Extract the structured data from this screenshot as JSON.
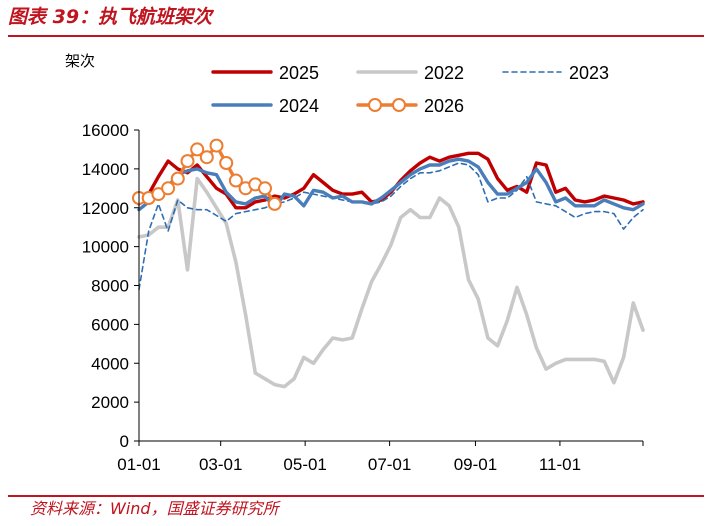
{
  "figure": {
    "title": "图表 39：执飞航班架次",
    "source": "资料来源：Wind，国盛证券研究所"
  },
  "chart_data": {
    "type": "line",
    "y_unit_label": "架次",
    "ylim": [
      0,
      16000
    ],
    "y_ticks": [
      0,
      2000,
      4000,
      6000,
      8000,
      10000,
      12000,
      14000,
      16000
    ],
    "x_domain": [
      "01-01",
      "12-31"
    ],
    "x_ticks": [
      "01-01",
      "03-01",
      "05-01",
      "07-01",
      "09-01",
      "11-01"
    ],
    "grid": false,
    "legend_position": "top",
    "series": [
      {
        "name": "2025",
        "color": "#c00000",
        "style": "solid",
        "points": [
          [
            "01-01",
            12200
          ],
          [
            "01-08",
            12700
          ],
          [
            "01-15",
            13600
          ],
          [
            "01-22",
            14400
          ],
          [
            "01-29",
            14000
          ],
          [
            "02-05",
            13800
          ],
          [
            "02-12",
            14200
          ],
          [
            "02-19",
            13600
          ],
          [
            "02-26",
            13000
          ],
          [
            "03-05",
            12700
          ],
          [
            "03-12",
            12000
          ],
          [
            "03-19",
            12000
          ],
          [
            "03-26",
            12300
          ],
          [
            "04-02",
            12400
          ],
          [
            "04-09",
            12600
          ],
          [
            "04-16",
            12500
          ],
          [
            "04-23",
            12700
          ],
          [
            "04-30",
            13000
          ],
          [
            "05-07",
            13700
          ],
          [
            "05-14",
            13300
          ],
          [
            "05-21",
            12900
          ],
          [
            "05-28",
            12700
          ],
          [
            "06-04",
            12700
          ],
          [
            "06-11",
            12800
          ],
          [
            "06-18",
            12300
          ],
          [
            "06-25",
            12400
          ],
          [
            "07-02",
            12800
          ],
          [
            "07-09",
            13400
          ],
          [
            "07-16",
            13900
          ],
          [
            "07-23",
            14300
          ],
          [
            "07-30",
            14600
          ],
          [
            "08-06",
            14400
          ],
          [
            "08-13",
            14600
          ],
          [
            "08-20",
            14700
          ],
          [
            "08-27",
            14800
          ],
          [
            "09-03",
            14800
          ],
          [
            "09-10",
            14500
          ],
          [
            "09-17",
            13500
          ],
          [
            "09-24",
            12900
          ],
          [
            "10-01",
            13100
          ],
          [
            "10-08",
            12800
          ],
          [
            "10-15",
            14300
          ],
          [
            "10-22",
            14200
          ],
          [
            "10-29",
            12800
          ],
          [
            "11-05",
            13000
          ],
          [
            "11-12",
            12400
          ],
          [
            "11-19",
            12300
          ],
          [
            "11-26",
            12400
          ],
          [
            "12-03",
            12600
          ],
          [
            "12-10",
            12500
          ],
          [
            "12-17",
            12400
          ],
          [
            "12-24",
            12200
          ],
          [
            "12-31",
            12300
          ]
        ]
      },
      {
        "name": "2022",
        "color": "#c8c8c8",
        "style": "solid",
        "points": [
          [
            "01-01",
            10500
          ],
          [
            "01-08",
            10600
          ],
          [
            "01-15",
            11000
          ],
          [
            "01-22",
            11000
          ],
          [
            "01-29",
            12400
          ],
          [
            "02-05",
            8800
          ],
          [
            "02-12",
            13500
          ],
          [
            "02-19",
            12800
          ],
          [
            "02-26",
            12000
          ],
          [
            "03-05",
            11200
          ],
          [
            "03-12",
            9200
          ],
          [
            "03-19",
            6500
          ],
          [
            "03-26",
            3500
          ],
          [
            "04-02",
            3200
          ],
          [
            "04-09",
            2900
          ],
          [
            "04-16",
            2800
          ],
          [
            "04-23",
            3200
          ],
          [
            "04-30",
            4300
          ],
          [
            "05-07",
            4000
          ],
          [
            "05-14",
            4700
          ],
          [
            "05-21",
            5300
          ],
          [
            "05-28",
            5200
          ],
          [
            "06-04",
            5300
          ],
          [
            "06-11",
            6800
          ],
          [
            "06-18",
            8200
          ],
          [
            "06-25",
            9100
          ],
          [
            "07-02",
            10100
          ],
          [
            "07-09",
            11500
          ],
          [
            "07-16",
            11900
          ],
          [
            "07-23",
            11500
          ],
          [
            "07-30",
            11500
          ],
          [
            "08-06",
            12500
          ],
          [
            "08-13",
            12100
          ],
          [
            "08-20",
            11000
          ],
          [
            "08-27",
            8300
          ],
          [
            "09-03",
            7300
          ],
          [
            "09-10",
            5300
          ],
          [
            "09-17",
            4900
          ],
          [
            "09-24",
            6200
          ],
          [
            "10-01",
            7900
          ],
          [
            "10-08",
            6500
          ],
          [
            "10-15",
            4800
          ],
          [
            "10-22",
            3700
          ],
          [
            "10-29",
            4000
          ],
          [
            "11-05",
            4200
          ],
          [
            "11-12",
            4200
          ],
          [
            "11-19",
            4200
          ],
          [
            "11-26",
            4200
          ],
          [
            "12-03",
            4100
          ],
          [
            "12-10",
            3000
          ],
          [
            "12-17",
            4300
          ],
          [
            "12-24",
            7100
          ],
          [
            "12-31",
            5700
          ]
        ]
      },
      {
        "name": "2023",
        "color": "#2e6db4",
        "style": "dashed",
        "points": [
          [
            "01-01",
            7800
          ],
          [
            "01-08",
            10800
          ],
          [
            "01-15",
            12200
          ],
          [
            "01-22",
            10800
          ],
          [
            "01-29",
            12400
          ],
          [
            "02-05",
            12000
          ],
          [
            "02-12",
            11900
          ],
          [
            "02-19",
            11900
          ],
          [
            "02-26",
            11600
          ],
          [
            "03-05",
            11300
          ],
          [
            "03-12",
            11700
          ],
          [
            "03-19",
            11800
          ],
          [
            "03-26",
            11900
          ],
          [
            "04-02",
            12000
          ],
          [
            "04-09",
            12200
          ],
          [
            "04-16",
            12300
          ],
          [
            "04-23",
            12500
          ],
          [
            "04-30",
            12800
          ],
          [
            "05-07",
            12700
          ],
          [
            "05-14",
            12600
          ],
          [
            "05-21",
            12500
          ],
          [
            "05-28",
            12400
          ],
          [
            "06-04",
            12300
          ],
          [
            "06-11",
            12300
          ],
          [
            "06-18",
            12200
          ],
          [
            "06-25",
            12300
          ],
          [
            "07-02",
            12600
          ],
          [
            "07-09",
            13100
          ],
          [
            "07-16",
            13500
          ],
          [
            "07-23",
            13800
          ],
          [
            "07-30",
            13800
          ],
          [
            "08-06",
            13900
          ],
          [
            "08-13",
            14100
          ],
          [
            "08-20",
            14300
          ],
          [
            "08-27",
            14200
          ],
          [
            "09-03",
            13700
          ],
          [
            "09-10",
            12300
          ],
          [
            "09-17",
            12500
          ],
          [
            "09-24",
            12500
          ],
          [
            "10-01",
            12900
          ],
          [
            "10-08",
            13600
          ],
          [
            "10-15",
            12300
          ],
          [
            "10-22",
            12200
          ],
          [
            "10-29",
            12100
          ],
          [
            "11-05",
            11800
          ],
          [
            "11-12",
            11500
          ],
          [
            "11-19",
            11700
          ],
          [
            "11-26",
            11800
          ],
          [
            "12-03",
            11800
          ],
          [
            "12-10",
            11700
          ],
          [
            "12-17",
            10900
          ],
          [
            "12-24",
            11500
          ],
          [
            "12-31",
            11900
          ]
        ]
      },
      {
        "name": "2024",
        "color": "#4a7ebb",
        "style": "solid",
        "points": [
          [
            "01-01",
            11900
          ],
          [
            "01-08",
            12300
          ],
          [
            "01-15",
            12800
          ],
          [
            "01-22",
            13100
          ],
          [
            "01-29",
            13700
          ],
          [
            "02-05",
            13900
          ],
          [
            "02-12",
            14000
          ],
          [
            "02-19",
            13800
          ],
          [
            "02-26",
            13700
          ],
          [
            "03-05",
            12800
          ],
          [
            "03-12",
            12300
          ],
          [
            "03-19",
            12200
          ],
          [
            "03-26",
            12500
          ],
          [
            "04-02",
            12600
          ],
          [
            "04-09",
            12000
          ],
          [
            "04-16",
            12700
          ],
          [
            "04-23",
            12600
          ],
          [
            "04-30",
            12100
          ],
          [
            "05-07",
            12900
          ],
          [
            "05-14",
            12800
          ],
          [
            "05-21",
            12500
          ],
          [
            "05-28",
            12600
          ],
          [
            "06-04",
            12300
          ],
          [
            "06-11",
            12300
          ],
          [
            "06-18",
            12200
          ],
          [
            "06-25",
            12500
          ],
          [
            "07-02",
            12900
          ],
          [
            "07-09",
            13300
          ],
          [
            "07-16",
            13700
          ],
          [
            "07-23",
            14000
          ],
          [
            "07-30",
            14200
          ],
          [
            "08-06",
            14200
          ],
          [
            "08-13",
            14400
          ],
          [
            "08-20",
            14500
          ],
          [
            "08-27",
            14400
          ],
          [
            "09-03",
            14100
          ],
          [
            "09-10",
            13300
          ],
          [
            "09-17",
            12700
          ],
          [
            "09-24",
            12700
          ],
          [
            "10-01",
            13000
          ],
          [
            "10-08",
            13300
          ],
          [
            "10-15",
            14000
          ],
          [
            "10-22",
            13300
          ],
          [
            "10-29",
            12300
          ],
          [
            "11-05",
            12500
          ],
          [
            "11-12",
            12100
          ],
          [
            "11-19",
            12100
          ],
          [
            "11-26",
            12100
          ],
          [
            "12-03",
            12400
          ],
          [
            "12-10",
            12200
          ],
          [
            "12-17",
            12000
          ],
          [
            "12-24",
            11900
          ],
          [
            "12-31",
            12200
          ]
        ]
      },
      {
        "name": "2026",
        "color": "#ed7d31",
        "style": "solid-markers",
        "points": [
          [
            "01-01",
            12500
          ],
          [
            "01-08",
            12500
          ],
          [
            "01-15",
            12700
          ],
          [
            "01-22",
            13000
          ],
          [
            "01-29",
            13500
          ],
          [
            "02-05",
            14400
          ],
          [
            "02-12",
            15000
          ],
          [
            "02-19",
            14600
          ],
          [
            "02-26",
            15200
          ],
          [
            "03-05",
            14300
          ],
          [
            "03-12",
            13400
          ],
          [
            "03-19",
            13000
          ],
          [
            "03-26",
            13200
          ],
          [
            "04-02",
            13000
          ],
          [
            "04-09",
            12200
          ]
        ]
      }
    ]
  }
}
